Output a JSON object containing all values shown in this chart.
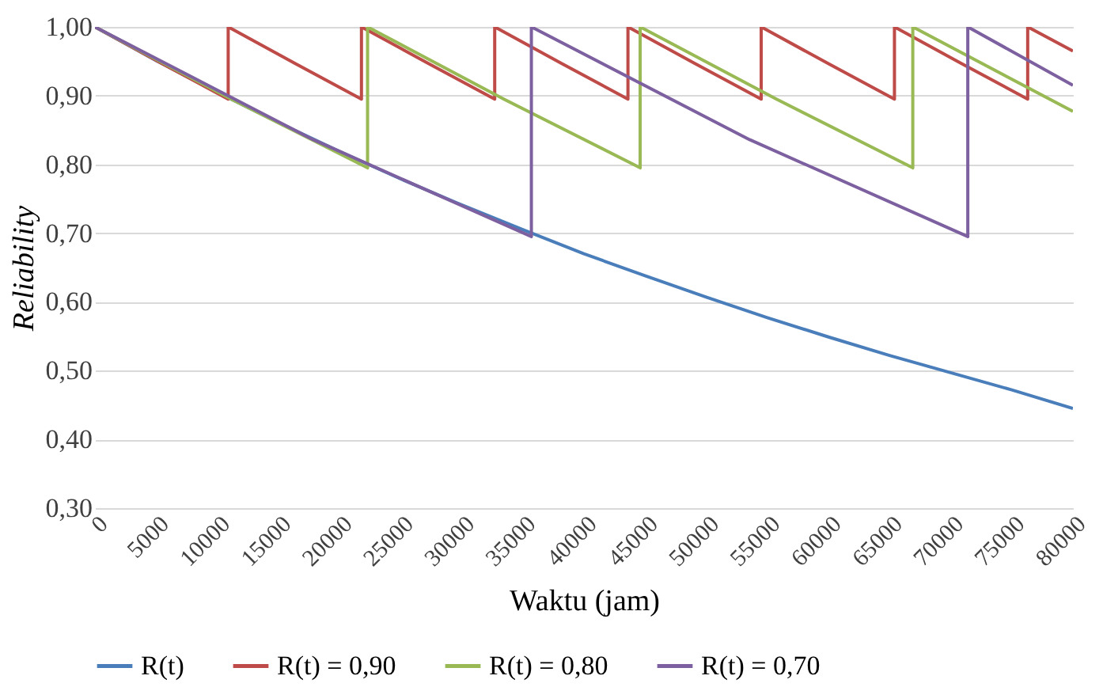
{
  "chart_data": {
    "type": "line",
    "xlabel": "Waktu (jam)",
    "ylabel": "Reliability",
    "xlim": [
      0,
      80000
    ],
    "xticks": [
      0,
      5000,
      10000,
      15000,
      20000,
      25000,
      30000,
      35000,
      40000,
      45000,
      50000,
      55000,
      60000,
      65000,
      70000,
      75000,
      80000
    ],
    "ylim": [
      0.3,
      1.0
    ],
    "yticks": [
      {
        "value": 0.3,
        "label": "0,30"
      },
      {
        "value": 0.4,
        "label": "0,40"
      },
      {
        "value": 0.5,
        "label": "0,50"
      },
      {
        "value": 0.6,
        "label": "0,60"
      },
      {
        "value": 0.7,
        "label": "0,70"
      },
      {
        "value": 0.8,
        "label": "0,80"
      },
      {
        "value": 0.9,
        "label": "0,90"
      },
      {
        "value": 1.0,
        "label": "1,00"
      }
    ],
    "grid": "y",
    "legend": "bottom",
    "marker": "none",
    "line_style": "solid",
    "series": [
      {
        "name": "R(t)",
        "color": "#4a7ebb",
        "x": [
          0,
          5000,
          10000,
          15000,
          20000,
          25000,
          30000,
          35000,
          40000,
          45000,
          50000,
          55000,
          60000,
          65000,
          70000,
          75000,
          80000
        ],
        "values": [
          1.0,
          0.951,
          0.905,
          0.861,
          0.819,
          0.779,
          0.741,
          0.705,
          0.67,
          0.638,
          0.607,
          0.577,
          0.549,
          0.522,
          0.497,
          0.472,
          0.445
        ]
      },
      {
        "name": "R(t) = 0,90",
        "color": "#be4b48",
        "x": [
          0,
          5450,
          10900,
          10900,
          16350,
          21800,
          21800,
          27250,
          32700,
          32700,
          38150,
          43600,
          43600,
          49050,
          54500,
          54500,
          59950,
          65400,
          65400,
          70850,
          76300,
          76300,
          80000
        ],
        "values": [
          1.0,
          0.947,
          0.895,
          1.0,
          0.947,
          0.895,
          1.0,
          0.947,
          0.895,
          1.0,
          0.947,
          0.895,
          1.0,
          0.947,
          0.895,
          1.0,
          0.947,
          0.895,
          1.0,
          0.947,
          0.895,
          1.0,
          0.965
        ]
      },
      {
        "name": "R(t) = 0,80",
        "color": "#98b954",
        "x": [
          0,
          11150,
          22300,
          22300,
          33450,
          44600,
          44600,
          55750,
          66900,
          66900,
          80000
        ],
        "values": [
          1.0,
          0.895,
          0.795,
          1.0,
          0.895,
          0.795,
          1.0,
          0.895,
          0.795,
          1.0,
          0.877
        ]
      },
      {
        "name": "R(t) = 0,70",
        "color": "#7d60a0",
        "x": [
          0,
          17850,
          35700,
          35700,
          53550,
          71400,
          71400,
          80000
        ],
        "values": [
          1.0,
          0.836,
          0.695,
          1.0,
          0.836,
          0.695,
          1.0,
          0.915
        ]
      }
    ]
  }
}
